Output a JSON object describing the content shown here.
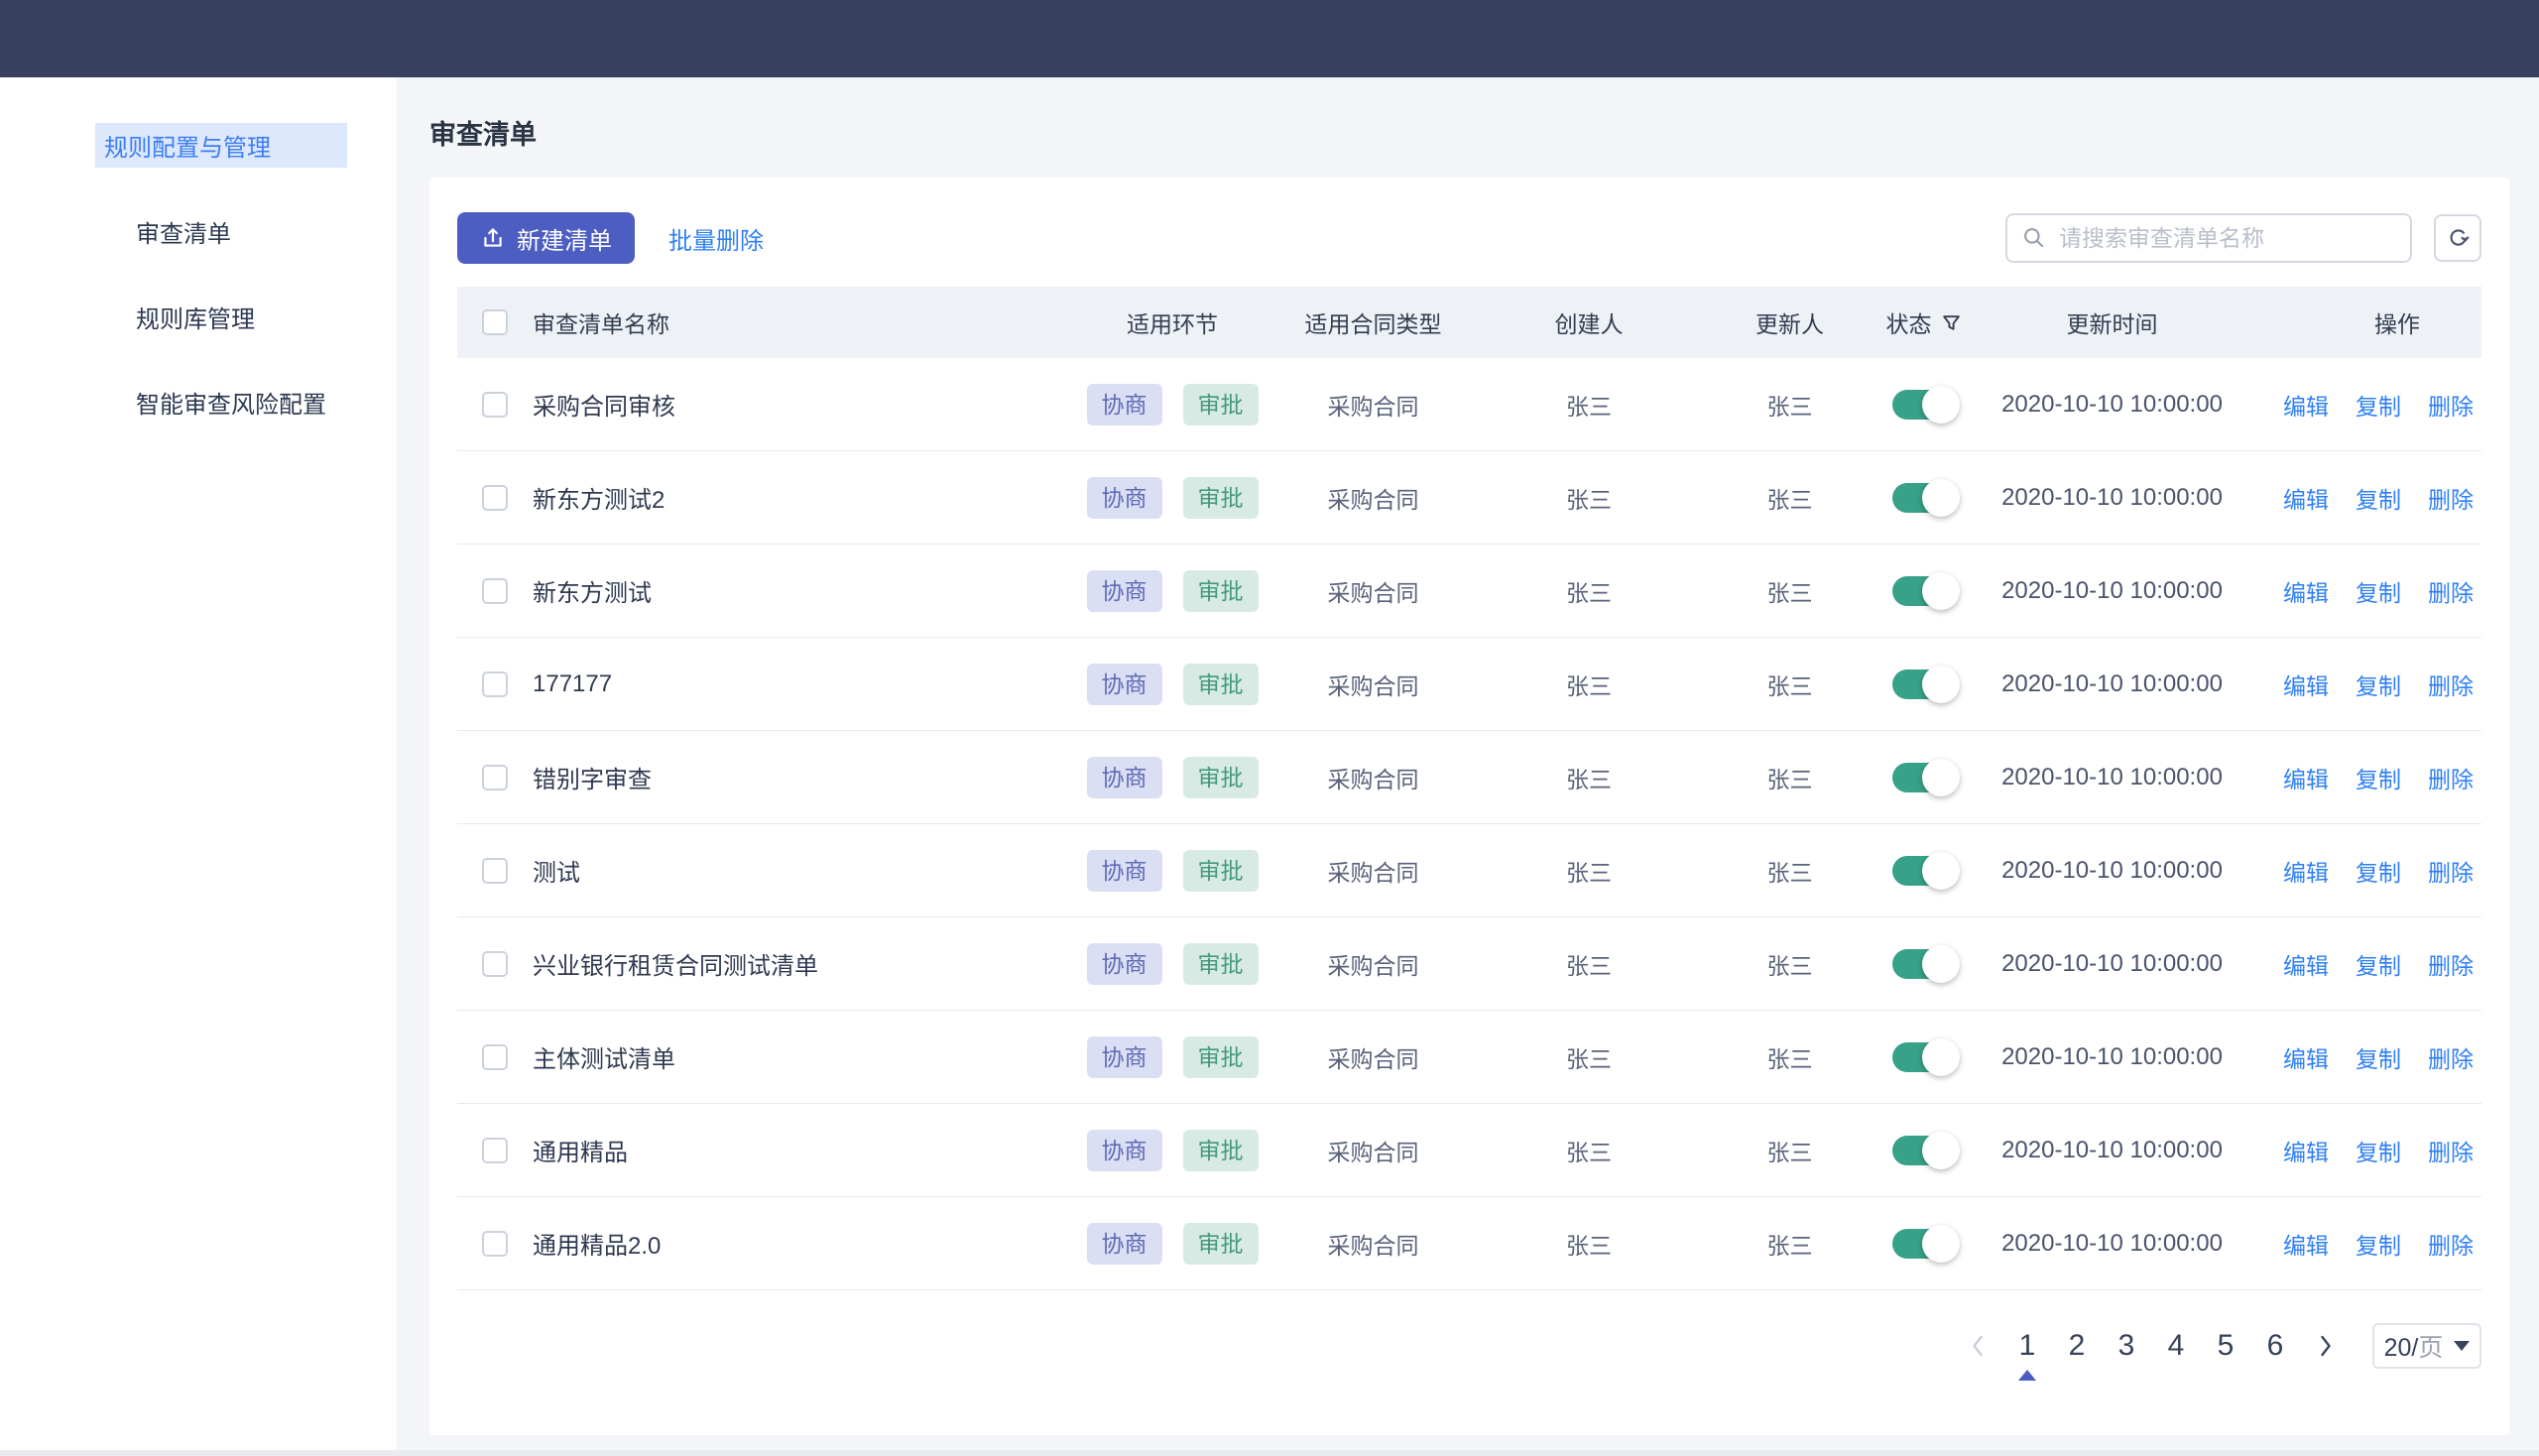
{
  "sidebar": {
    "group_label": "规则配置与管理",
    "items": [
      {
        "label": "审查清单"
      },
      {
        "label": "规则库管理"
      },
      {
        "label": "智能审查风险配置"
      }
    ]
  },
  "page": {
    "title": "审查清单"
  },
  "toolbar": {
    "new_button": "新建清单",
    "batch_delete": "批量删除",
    "search_placeholder": "请搜索审查清单名称"
  },
  "table": {
    "headers": [
      "审查清单名称",
      "适用环节",
      "适用合同类型",
      "创建人",
      "更新人",
      "状态",
      "更新时间",
      "操作"
    ],
    "action_labels": [
      "编辑",
      "复制",
      "删除"
    ],
    "rows": [
      {
        "name": "采购合同审核",
        "stages": [
          "协商",
          "审批"
        ],
        "contract_type": "采购合同",
        "creator": "张三",
        "updater": "张三",
        "status": true,
        "updated_at": "2020-10-10 10:00:00"
      },
      {
        "name": "新东方测试2",
        "stages": [
          "协商",
          "审批"
        ],
        "contract_type": "采购合同",
        "creator": "张三",
        "updater": "张三",
        "status": true,
        "updated_at": "2020-10-10 10:00:00"
      },
      {
        "name": "新东方测试",
        "stages": [
          "协商",
          "审批"
        ],
        "contract_type": "采购合同",
        "creator": "张三",
        "updater": "张三",
        "status": true,
        "updated_at": "2020-10-10 10:00:00"
      },
      {
        "name": "177177",
        "stages": [
          "协商",
          "审批"
        ],
        "contract_type": "采购合同",
        "creator": "张三",
        "updater": "张三",
        "status": true,
        "updated_at": "2020-10-10 10:00:00"
      },
      {
        "name": "错别字审查",
        "stages": [
          "协商",
          "审批"
        ],
        "contract_type": "采购合同",
        "creator": "张三",
        "updater": "张三",
        "status": true,
        "updated_at": "2020-10-10 10:00:00"
      },
      {
        "name": "测试",
        "stages": [
          "协商",
          "审批"
        ],
        "contract_type": "采购合同",
        "creator": "张三",
        "updater": "张三",
        "status": true,
        "updated_at": "2020-10-10 10:00:00"
      },
      {
        "name": "兴业银行租赁合同测试清单",
        "stages": [
          "协商",
          "审批"
        ],
        "contract_type": "采购合同",
        "creator": "张三",
        "updater": "张三",
        "status": true,
        "updated_at": "2020-10-10 10:00:00"
      },
      {
        "name": "主体测试清单",
        "stages": [
          "协商",
          "审批"
        ],
        "contract_type": "采购合同",
        "creator": "张三",
        "updater": "张三",
        "status": true,
        "updated_at": "2020-10-10 10:00:00"
      },
      {
        "name": "通用精品",
        "stages": [
          "协商",
          "审批"
        ],
        "contract_type": "采购合同",
        "creator": "张三",
        "updater": "张三",
        "status": true,
        "updated_at": "2020-10-10 10:00:00"
      },
      {
        "name": "通用精品2.0",
        "stages": [
          "协商",
          "审批"
        ],
        "contract_type": "采购合同",
        "creator": "张三",
        "updater": "张三",
        "status": true,
        "updated_at": "2020-10-10 10:00:00"
      }
    ]
  },
  "pagination": {
    "pages": [
      "1",
      "2",
      "3",
      "4",
      "5",
      "6"
    ],
    "current": "1",
    "page_size_value": "20/",
    "page_size_unit": "页"
  },
  "colors": {
    "topbar_bg": "#37415f",
    "primary_button": "#4d5ec3",
    "link_blue": "#2e7ff6",
    "sidebar_active_bg": "#dde8fc",
    "sidebar_active_text": "#3c7ef7",
    "tag_negotiate_bg": "#dbdff4",
    "tag_negotiate_text": "#5f6bb4",
    "tag_approve_bg": "#d7ebe4",
    "tag_approve_text": "#46997e",
    "toggle_on": "#38a189",
    "table_header_bg": "#eef1f6",
    "page_bg": "#f3f5f9"
  }
}
